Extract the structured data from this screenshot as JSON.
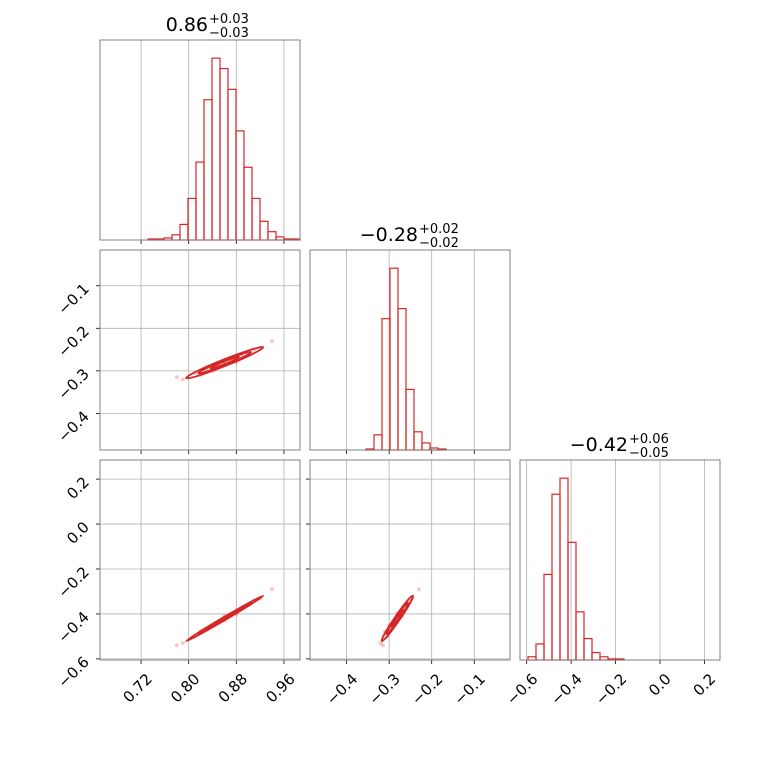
{
  "chart_data": {
    "type": "corner",
    "color": "#d62728",
    "grid": true,
    "params": [
      {
        "title": "0.86",
        "upper": "+0.03",
        "lower": "−0.03",
        "lim": [
          0.651,
          0.987
        ],
        "ticks": [
          0.72,
          {
            "value": 0.8,
            "label": "0.80"
          },
          0.88,
          0.96
        ],
        "bins": [
          0.651,
          0.6644,
          0.6779,
          0.6913,
          0.7048,
          0.7182,
          0.7316,
          0.7451,
          0.7585,
          0.772,
          0.7854,
          0.7988,
          0.8123,
          0.8257,
          0.8392,
          0.8526,
          0.866,
          0.8795,
          0.8929,
          0.9064,
          0.9198,
          0.9332,
          0.9467,
          0.9601,
          0.9736,
          0.987
        ],
        "counts": [
          0,
          0,
          0,
          0,
          0,
          0,
          1,
          1,
          2,
          5,
          15,
          40,
          75,
          135,
          175,
          165,
          145,
          105,
          70,
          40,
          18,
          8,
          3,
          1,
          1
        ],
        "samples": [
          0.82,
          0.84,
          0.85,
          0.86,
          0.87,
          0.88,
          0.9,
          0.92,
          0.79,
          0.83,
          0.86,
          0.89,
          0.85,
          0.87,
          0.81,
          0.91,
          0.94,
          0.78,
          0.86,
          0.88
        ]
      },
      {
        "title": "−0.28",
        "upper": "+0.02",
        "lower": "−0.02",
        "lim": [
          -0.486,
          -0.016
        ],
        "ticks": [
          {
            "value": -0.4,
            "label": "−0.4"
          },
          {
            "value": -0.3,
            "label": "−0.3"
          },
          {
            "value": -0.2,
            "label": "−0.2"
          },
          {
            "value": -0.1,
            "label": "−0.1"
          }
        ],
        "bins": [
          -0.486,
          -0.4672,
          -0.4484,
          -0.4296,
          -0.4108,
          -0.392,
          -0.3732,
          -0.3544,
          -0.3356,
          -0.3168,
          -0.298,
          -0.2792,
          -0.2604,
          -0.2416,
          -0.2228,
          -0.204,
          -0.1852,
          -0.1664,
          -0.1476,
          -0.1288,
          -0.11,
          -0.0912,
          -0.0724,
          -0.0536,
          -0.0348,
          -0.016
        ],
        "counts": [
          0,
          0,
          0,
          0,
          0,
          0,
          0,
          1,
          15,
          130,
          180,
          140,
          60,
          18,
          7,
          2,
          1,
          0,
          0,
          0,
          0,
          0,
          0,
          0,
          0
        ],
        "samples": [
          -0.31,
          -0.3,
          -0.29,
          -0.28,
          -0.28,
          -0.27,
          -0.26,
          -0.245,
          -0.32,
          -0.295,
          -0.285,
          -0.265,
          -0.29,
          -0.27,
          -0.305,
          -0.25,
          -0.23,
          -0.315,
          -0.275,
          -0.28
        ]
      },
      {
        "title": "−0.42",
        "upper": "+0.06",
        "lower": "−0.05",
        "lim": [
          -0.63,
          0.27
        ],
        "ylim": [
          -0.605,
          0.285
        ],
        "ticks": [
          {
            "value": -0.6,
            "label": "−0.6"
          },
          {
            "value": -0.4,
            "label": "−0.4"
          },
          {
            "value": -0.2,
            "label": "−0.2"
          },
          {
            "value": 0.0,
            "label": "0.0"
          },
          0.2
        ],
        "bins": [
          -0.63,
          -0.594,
          -0.558,
          -0.522,
          -0.486,
          -0.45,
          -0.414,
          -0.378,
          -0.342,
          -0.306,
          -0.27,
          -0.234,
          -0.198,
          -0.162,
          -0.126,
          -0.09,
          -0.054,
          -0.018,
          0.018,
          0.054,
          0.09,
          0.126,
          0.162,
          0.198,
          0.234,
          0.27
        ],
        "counts": [
          0,
          3,
          15,
          80,
          155,
          170,
          110,
          45,
          20,
          7,
          3,
          1,
          1,
          0,
          0,
          0,
          0,
          0,
          0,
          0,
          0,
          0,
          0,
          0,
          0
        ],
        "samples": [
          -0.48,
          -0.45,
          -0.44,
          -0.42,
          -0.4,
          -0.39,
          -0.36,
          -0.33,
          -0.53,
          -0.47,
          -0.43,
          -0.37,
          -0.44,
          -0.41,
          -0.5,
          -0.34,
          -0.29,
          -0.54,
          -0.41,
          -0.4
        ]
      }
    ]
  }
}
